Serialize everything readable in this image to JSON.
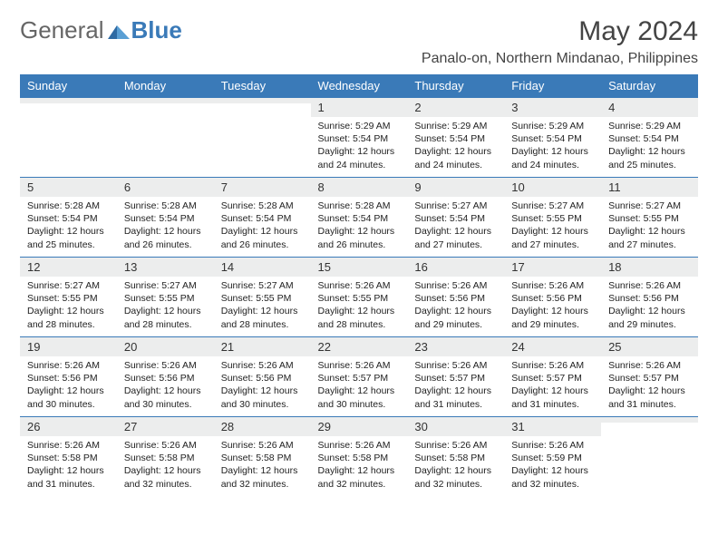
{
  "logo": {
    "text_general": "General",
    "text_blue": "Blue"
  },
  "header": {
    "month_title": "May 2024",
    "location": "Panalo-on, Northern Mindanao, Philippines"
  },
  "colors": {
    "header_bg": "#3a7ab8",
    "header_text": "#ffffff",
    "daynum_bg": "#eceded",
    "week_border": "#3a7ab8",
    "page_bg": "#ffffff",
    "body_text": "#222222"
  },
  "day_headers": [
    "Sunday",
    "Monday",
    "Tuesday",
    "Wednesday",
    "Thursday",
    "Friday",
    "Saturday"
  ],
  "weeks": [
    [
      {
        "day": "",
        "sunrise": "",
        "sunset": "",
        "daylight": ""
      },
      {
        "day": "",
        "sunrise": "",
        "sunset": "",
        "daylight": ""
      },
      {
        "day": "",
        "sunrise": "",
        "sunset": "",
        "daylight": ""
      },
      {
        "day": "1",
        "sunrise": "Sunrise: 5:29 AM",
        "sunset": "Sunset: 5:54 PM",
        "daylight": "Daylight: 12 hours and 24 minutes."
      },
      {
        "day": "2",
        "sunrise": "Sunrise: 5:29 AM",
        "sunset": "Sunset: 5:54 PM",
        "daylight": "Daylight: 12 hours and 24 minutes."
      },
      {
        "day": "3",
        "sunrise": "Sunrise: 5:29 AM",
        "sunset": "Sunset: 5:54 PM",
        "daylight": "Daylight: 12 hours and 24 minutes."
      },
      {
        "day": "4",
        "sunrise": "Sunrise: 5:29 AM",
        "sunset": "Sunset: 5:54 PM",
        "daylight": "Daylight: 12 hours and 25 minutes."
      }
    ],
    [
      {
        "day": "5",
        "sunrise": "Sunrise: 5:28 AM",
        "sunset": "Sunset: 5:54 PM",
        "daylight": "Daylight: 12 hours and 25 minutes."
      },
      {
        "day": "6",
        "sunrise": "Sunrise: 5:28 AM",
        "sunset": "Sunset: 5:54 PM",
        "daylight": "Daylight: 12 hours and 26 minutes."
      },
      {
        "day": "7",
        "sunrise": "Sunrise: 5:28 AM",
        "sunset": "Sunset: 5:54 PM",
        "daylight": "Daylight: 12 hours and 26 minutes."
      },
      {
        "day": "8",
        "sunrise": "Sunrise: 5:28 AM",
        "sunset": "Sunset: 5:54 PM",
        "daylight": "Daylight: 12 hours and 26 minutes."
      },
      {
        "day": "9",
        "sunrise": "Sunrise: 5:27 AM",
        "sunset": "Sunset: 5:54 PM",
        "daylight": "Daylight: 12 hours and 27 minutes."
      },
      {
        "day": "10",
        "sunrise": "Sunrise: 5:27 AM",
        "sunset": "Sunset: 5:55 PM",
        "daylight": "Daylight: 12 hours and 27 minutes."
      },
      {
        "day": "11",
        "sunrise": "Sunrise: 5:27 AM",
        "sunset": "Sunset: 5:55 PM",
        "daylight": "Daylight: 12 hours and 27 minutes."
      }
    ],
    [
      {
        "day": "12",
        "sunrise": "Sunrise: 5:27 AM",
        "sunset": "Sunset: 5:55 PM",
        "daylight": "Daylight: 12 hours and 28 minutes."
      },
      {
        "day": "13",
        "sunrise": "Sunrise: 5:27 AM",
        "sunset": "Sunset: 5:55 PM",
        "daylight": "Daylight: 12 hours and 28 minutes."
      },
      {
        "day": "14",
        "sunrise": "Sunrise: 5:27 AM",
        "sunset": "Sunset: 5:55 PM",
        "daylight": "Daylight: 12 hours and 28 minutes."
      },
      {
        "day": "15",
        "sunrise": "Sunrise: 5:26 AM",
        "sunset": "Sunset: 5:55 PM",
        "daylight": "Daylight: 12 hours and 28 minutes."
      },
      {
        "day": "16",
        "sunrise": "Sunrise: 5:26 AM",
        "sunset": "Sunset: 5:56 PM",
        "daylight": "Daylight: 12 hours and 29 minutes."
      },
      {
        "day": "17",
        "sunrise": "Sunrise: 5:26 AM",
        "sunset": "Sunset: 5:56 PM",
        "daylight": "Daylight: 12 hours and 29 minutes."
      },
      {
        "day": "18",
        "sunrise": "Sunrise: 5:26 AM",
        "sunset": "Sunset: 5:56 PM",
        "daylight": "Daylight: 12 hours and 29 minutes."
      }
    ],
    [
      {
        "day": "19",
        "sunrise": "Sunrise: 5:26 AM",
        "sunset": "Sunset: 5:56 PM",
        "daylight": "Daylight: 12 hours and 30 minutes."
      },
      {
        "day": "20",
        "sunrise": "Sunrise: 5:26 AM",
        "sunset": "Sunset: 5:56 PM",
        "daylight": "Daylight: 12 hours and 30 minutes."
      },
      {
        "day": "21",
        "sunrise": "Sunrise: 5:26 AM",
        "sunset": "Sunset: 5:56 PM",
        "daylight": "Daylight: 12 hours and 30 minutes."
      },
      {
        "day": "22",
        "sunrise": "Sunrise: 5:26 AM",
        "sunset": "Sunset: 5:57 PM",
        "daylight": "Daylight: 12 hours and 30 minutes."
      },
      {
        "day": "23",
        "sunrise": "Sunrise: 5:26 AM",
        "sunset": "Sunset: 5:57 PM",
        "daylight": "Daylight: 12 hours and 31 minutes."
      },
      {
        "day": "24",
        "sunrise": "Sunrise: 5:26 AM",
        "sunset": "Sunset: 5:57 PM",
        "daylight": "Daylight: 12 hours and 31 minutes."
      },
      {
        "day": "25",
        "sunrise": "Sunrise: 5:26 AM",
        "sunset": "Sunset: 5:57 PM",
        "daylight": "Daylight: 12 hours and 31 minutes."
      }
    ],
    [
      {
        "day": "26",
        "sunrise": "Sunrise: 5:26 AM",
        "sunset": "Sunset: 5:58 PM",
        "daylight": "Daylight: 12 hours and 31 minutes."
      },
      {
        "day": "27",
        "sunrise": "Sunrise: 5:26 AM",
        "sunset": "Sunset: 5:58 PM",
        "daylight": "Daylight: 12 hours and 32 minutes."
      },
      {
        "day": "28",
        "sunrise": "Sunrise: 5:26 AM",
        "sunset": "Sunset: 5:58 PM",
        "daylight": "Daylight: 12 hours and 32 minutes."
      },
      {
        "day": "29",
        "sunrise": "Sunrise: 5:26 AM",
        "sunset": "Sunset: 5:58 PM",
        "daylight": "Daylight: 12 hours and 32 minutes."
      },
      {
        "day": "30",
        "sunrise": "Sunrise: 5:26 AM",
        "sunset": "Sunset: 5:58 PM",
        "daylight": "Daylight: 12 hours and 32 minutes."
      },
      {
        "day": "31",
        "sunrise": "Sunrise: 5:26 AM",
        "sunset": "Sunset: 5:59 PM",
        "daylight": "Daylight: 12 hours and 32 minutes."
      },
      {
        "day": "",
        "sunrise": "",
        "sunset": "",
        "daylight": ""
      }
    ]
  ]
}
